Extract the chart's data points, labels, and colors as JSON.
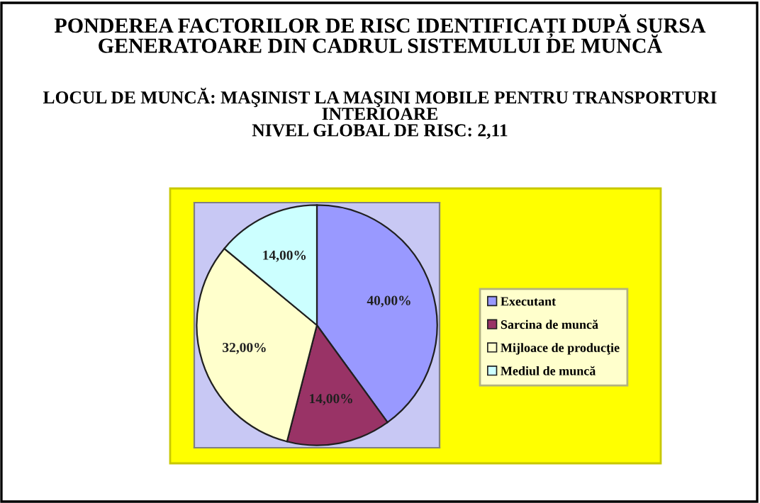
{
  "chart_data": {
    "type": "pie",
    "title": "PONDEREA FACTORILOR DE RISC IDENTIFICAȚI DUPĂ SURSA\nGENERATOARE DIN CADRUL SISTEMULUI DE MUNCĂ",
    "subtitle": "LOCUL DE MUNCĂ: MAŞINIST LA MAŞINI MOBILE PENTRU TRANSPORTURI\nINTERIOARE\nNIVEL GLOBAL DE RISC: 2,11",
    "categories": [
      "Executant",
      "Sarcina de muncă",
      "Mijloace de producţie",
      "Mediul de muncă"
    ],
    "values": [
      40,
      14,
      32,
      14
    ],
    "value_labels": [
      "40,00%",
      "14,00%",
      "32,00%",
      "14,00%"
    ],
    "colors": [
      "#9999ff",
      "#993366",
      "#ffffcc",
      "#ccffff"
    ],
    "legend": "right"
  }
}
